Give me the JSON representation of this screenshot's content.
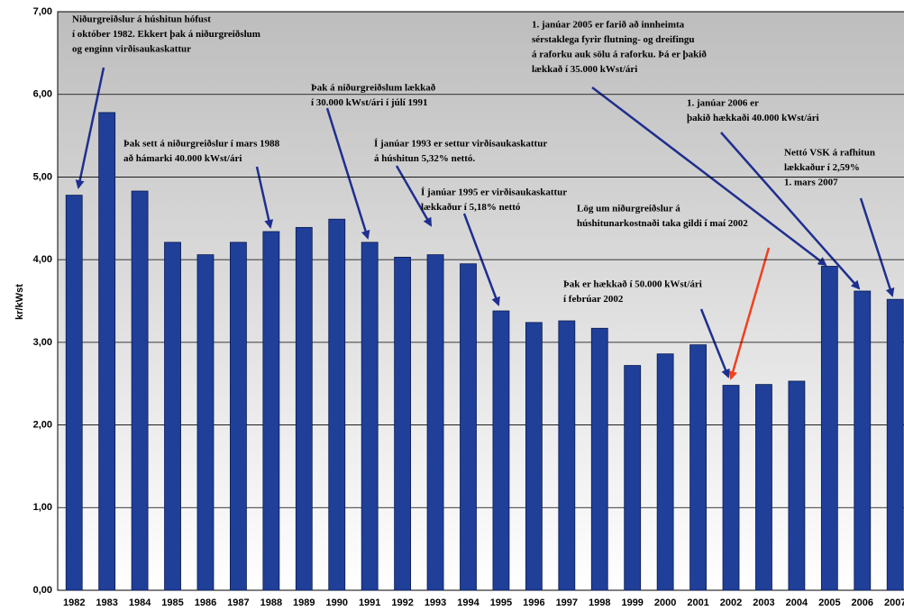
{
  "chart_data": {
    "type": "bar",
    "ylabel": "kr/kWst",
    "categories": [
      "1982",
      "1983",
      "1984",
      "1985",
      "1986",
      "1987",
      "1988",
      "1989",
      "1990",
      "1991",
      "1992",
      "1993",
      "1994",
      "1995",
      "1996",
      "1997",
      "1998",
      "1999",
      "2000",
      "2001",
      "2002",
      "2003",
      "2004",
      "2005",
      "2006",
      "2007"
    ],
    "values": [
      4.78,
      5.78,
      4.83,
      4.21,
      4.06,
      4.21,
      4.34,
      4.39,
      4.49,
      4.21,
      4.03,
      4.06,
      3.95,
      3.38,
      3.24,
      3.26,
      3.17,
      2.72,
      2.86,
      2.97,
      2.48,
      2.49,
      2.53,
      3.92,
      3.62,
      3.52
    ],
    "color": "#1f3f99",
    "ylim": [
      0,
      7
    ],
    "yticks": [
      {
        "value": 0,
        "label": "0,00"
      },
      {
        "value": 1,
        "label": "1,00"
      },
      {
        "value": 2,
        "label": "2,00"
      },
      {
        "value": 3,
        "label": "3,00"
      },
      {
        "value": 4,
        "label": "4,00"
      },
      {
        "value": 5,
        "label": "5,00"
      },
      {
        "value": 6,
        "label": "6,00"
      },
      {
        "value": 7,
        "label": "7,00"
      }
    ],
    "grid": true,
    "annotations": [
      {
        "lines": [
          "Niðurgreiðslur á húshitun hófust",
          "í október 1982. Ekkert þak á niðurgreiðslum",
          "og enginn virðisaukaskattur"
        ]
      },
      {
        "lines": [
          "Þak sett á niðurgreiðslur í mars 1988",
          "að hámarki 40.000 kWst/ári"
        ]
      },
      {
        "lines": [
          "Þak á niðurgreiðslum lækkað",
          "í 30.000 kWst/ári í júlí 1991"
        ]
      },
      {
        "lines": [
          "Í janúar 1993 er settur virðisaukaskattur",
          "á húshitun 5,32% nettó."
        ]
      },
      {
        "lines": [
          "Í janúar 1995 er virðisaukaskattur",
          "lækkaður í 5,18% nettó"
        ]
      },
      {
        "lines": [
          "1. janúar 2005 er farið að innheimta",
          "sérstaklega fyrir flutning- og dreifingu",
          "á raforku auk sölu á raforku. Þá er þakið",
          "lækkað í 35.000 kWst/ári"
        ]
      },
      {
        "lines": [
          "1. janúar 2006 er",
          "þakið hækkaði 40.000 kWst/ári"
        ]
      },
      {
        "lines": [
          "Nettó VSK á rafhitun",
          "lækkaður í 2,59%",
          "1. mars 2007"
        ]
      },
      {
        "lines": [
          "Lög um niðurgreiðslur á",
          "húshitunarkostnaði taka gildi í maí 2002"
        ]
      },
      {
        "lines": [
          "Þak er hækkað í 50.000 kWst/ári",
          "í febrúar 2002"
        ]
      }
    ]
  }
}
